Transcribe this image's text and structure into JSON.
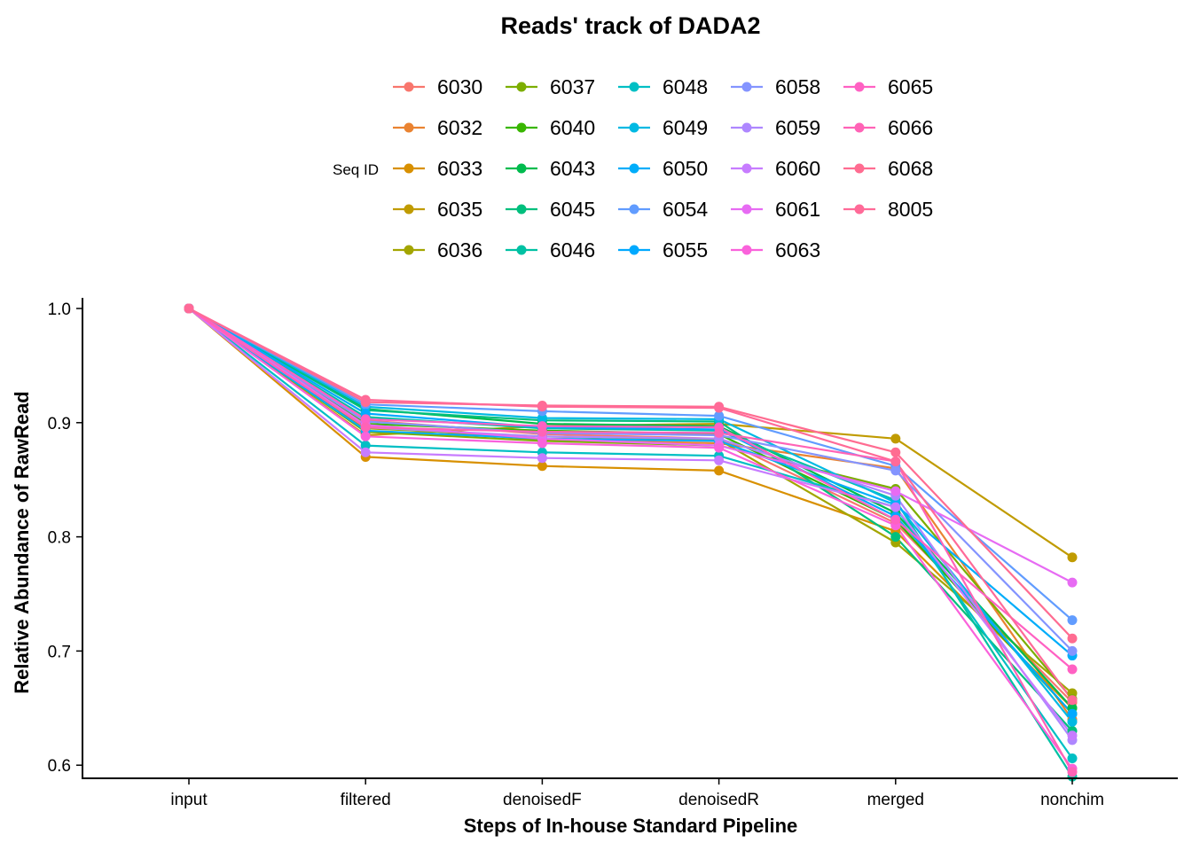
{
  "chart_data": {
    "type": "line",
    "title": "Reads' track of DADA2",
    "xlabel": "Steps of In-house Standard Pipeline",
    "ylabel": "Relative Abundance of RawRead",
    "categories": [
      "input",
      "filtered",
      "denoisedF",
      "denoisedR",
      "merged",
      "nonchim"
    ],
    "ylim": [
      0.59,
      1.0
    ],
    "yticks": [
      0.6,
      0.7,
      0.8,
      0.9,
      1.0
    ],
    "ytick_labels": [
      "0.6",
      "0.7",
      "0.8",
      "0.9",
      "1.0"
    ],
    "grid": false,
    "legend_title": "Seq ID",
    "legend_position": "top",
    "series": [
      {
        "name": "6030",
        "color": "#F8766D",
        "values": [
          1.0,
          0.902,
          0.89,
          0.886,
          0.812,
          0.655
        ]
      },
      {
        "name": "6032",
        "color": "#EA8331",
        "values": [
          1.0,
          0.897,
          0.885,
          0.882,
          0.86,
          0.64
        ]
      },
      {
        "name": "6033",
        "color": "#D89000",
        "values": [
          1.0,
          0.87,
          0.862,
          0.858,
          0.805,
          0.65
        ]
      },
      {
        "name": "6035",
        "color": "#C09B00",
        "values": [
          1.0,
          0.889,
          0.897,
          0.899,
          0.886,
          0.782
        ]
      },
      {
        "name": "6036",
        "color": "#A3A500",
        "values": [
          1.0,
          0.895,
          0.888,
          0.885,
          0.795,
          0.663
        ]
      },
      {
        "name": "6037",
        "color": "#7CAE00",
        "values": [
          1.0,
          0.892,
          0.884,
          0.88,
          0.842,
          0.658
        ]
      },
      {
        "name": "6040",
        "color": "#39B600",
        "values": [
          1.0,
          0.899,
          0.893,
          0.89,
          0.815,
          0.645
        ]
      },
      {
        "name": "6043",
        "color": "#00BB4E",
        "values": [
          1.0,
          0.912,
          0.899,
          0.897,
          0.821,
          0.65
        ]
      },
      {
        "name": "6045",
        "color": "#00BF7D",
        "values": [
          1.0,
          0.911,
          0.902,
          0.901,
          0.8,
          0.63
        ]
      },
      {
        "name": "6046",
        "color": "#00C1A3",
        "values": [
          1.0,
          0.905,
          0.895,
          0.893,
          0.832,
          0.59
        ]
      },
      {
        "name": "6048",
        "color": "#00BFC4",
        "values": [
          1.0,
          0.88,
          0.874,
          0.871,
          0.826,
          0.606
        ]
      },
      {
        "name": "6049",
        "color": "#00B9E3",
        "values": [
          1.0,
          0.914,
          0.904,
          0.903,
          0.83,
          0.638
        ]
      },
      {
        "name": "6050",
        "color": "#00ADFA",
        "values": [
          1.0,
          0.893,
          0.886,
          0.884,
          0.828,
          0.696
        ]
      },
      {
        "name": "6054",
        "color": "#619CFF",
        "values": [
          1.0,
          0.916,
          0.91,
          0.906,
          0.862,
          0.727
        ]
      },
      {
        "name": "6055",
        "color": "#00A9FF",
        "values": [
          1.0,
          0.908,
          0.896,
          0.894,
          0.818,
          0.645
        ]
      },
      {
        "name": "6058",
        "color": "#8494FF",
        "values": [
          1.0,
          0.901,
          0.891,
          0.889,
          0.858,
          0.7
        ]
      },
      {
        "name": "6059",
        "color": "#AE87FF",
        "values": [
          1.0,
          0.896,
          0.888,
          0.886,
          0.836,
          0.622
        ]
      },
      {
        "name": "6060",
        "color": "#C77CFF",
        "values": [
          1.0,
          0.874,
          0.869,
          0.867,
          0.826,
          0.626
        ]
      },
      {
        "name": "6061",
        "color": "#E76BF3",
        "values": [
          1.0,
          0.898,
          0.886,
          0.88,
          0.84,
          0.76
        ]
      },
      {
        "name": "6063",
        "color": "#FA62DB",
        "values": [
          1.0,
          0.888,
          0.882,
          0.878,
          0.81,
          0.597
        ]
      },
      {
        "name": "6065",
        "color": "#FF61C3",
        "values": [
          1.0,
          0.903,
          0.897,
          0.896,
          0.815,
          0.684
        ]
      },
      {
        "name": "6066",
        "color": "#FF63B6",
        "values": [
          1.0,
          0.896,
          0.892,
          0.891,
          0.866,
          0.594
        ]
      },
      {
        "name": "6068",
        "color": "#FF6C91",
        "values": [
          1.0,
          0.918,
          0.915,
          0.914,
          0.874,
          0.711
        ]
      },
      {
        "name": "8005",
        "color": "#FF6A98",
        "values": [
          1.0,
          0.92,
          0.914,
          0.913,
          0.866,
          0.657
        ]
      }
    ]
  }
}
